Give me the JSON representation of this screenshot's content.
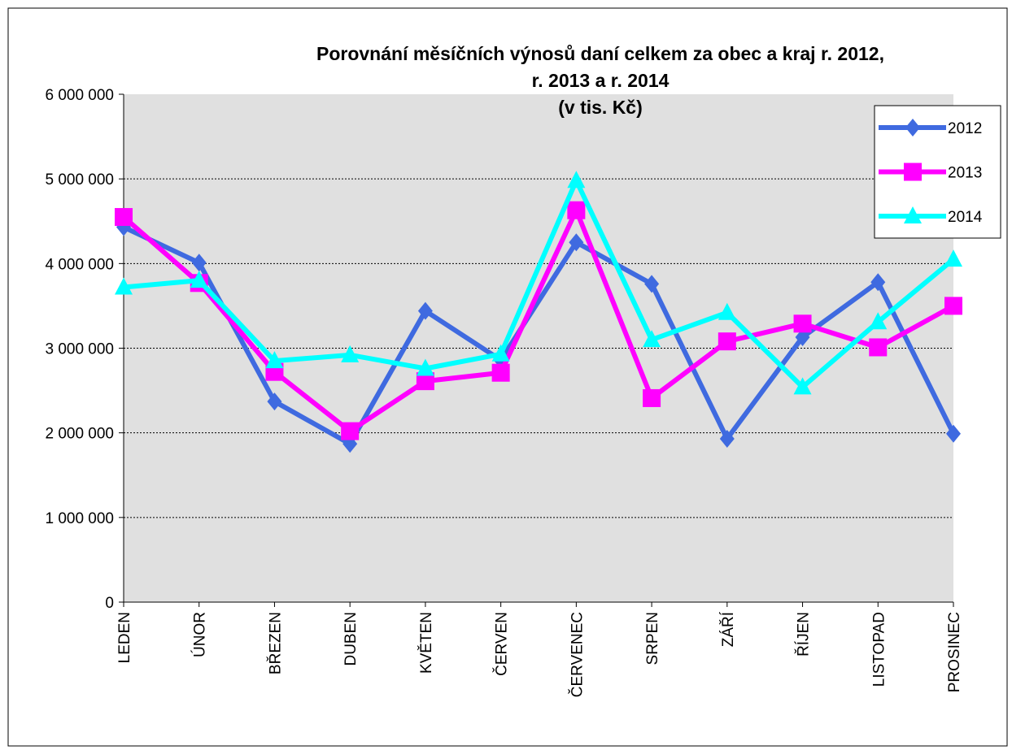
{
  "chart_data": {
    "type": "line",
    "title": [
      "Porovnání měsíčních výnosů daní celkem za obec a kraj r. 2012,",
      "r. 2013 a r. 2014",
      "(v tis. Kč)"
    ],
    "categories": [
      "LEDEN",
      "ÚNOR",
      "BŘEZEN",
      "DUBEN",
      "KVĚTEN",
      "ČERVEN",
      "ČERVENEC",
      "SRPEN",
      "ZÁŘÍ",
      "ŘÍJEN",
      "LISTOPAD",
      "PROSINEC"
    ],
    "series": [
      {
        "name": "2012",
        "color": "#3f6ae0",
        "marker": "diamond",
        "values": [
          4430000,
          4010000,
          2370000,
          1870000,
          3440000,
          2860000,
          4250000,
          3760000,
          1930000,
          3130000,
          3780000,
          1990000
        ]
      },
      {
        "name": "2013",
        "color": "#ff00ff",
        "marker": "square",
        "values": [
          4550000,
          3770000,
          2720000,
          2020000,
          2610000,
          2710000,
          4630000,
          2410000,
          3080000,
          3290000,
          3010000,
          3500000
        ]
      },
      {
        "name": "2014",
        "color": "#00ffff",
        "marker": "triangle",
        "values": [
          3720000,
          3800000,
          2850000,
          2920000,
          2760000,
          2930000,
          4980000,
          3100000,
          3420000,
          2540000,
          3310000,
          4050000
        ]
      }
    ],
    "ylim": [
      0,
      6000000
    ],
    "yticks": [
      0,
      {
        "value": 1000000,
        "label": "1 000 000"
      },
      {
        "value": 2000000,
        "label": "2 000 000"
      },
      {
        "value": 3000000,
        "label": "3 000 000"
      },
      {
        "value": 4000000,
        "label": "4 000 000"
      },
      {
        "value": 5000000,
        "label": "5 000 000"
      },
      {
        "value": 6000000,
        "label": "6 000 000"
      }
    ],
    "grid": true,
    "legend": "top-right",
    "plot_background": "#e0e0e0"
  }
}
